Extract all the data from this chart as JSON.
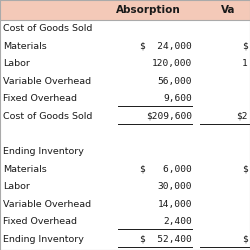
{
  "header_bg": "#f4c9b8",
  "table_bg": "#ffffff",
  "border_color": "#aaaaaa",
  "text_color": "#1a1a1a",
  "rows": [
    {
      "label": "Cost of Goods Sold",
      "absorption": "",
      "variable": "",
      "section": true,
      "ul": false
    },
    {
      "label": "Materials",
      "absorption": "$  24,000",
      "variable": "$",
      "section": false,
      "ul": false
    },
    {
      "label": "Labor",
      "absorption": "120,000",
      "variable": "1",
      "section": false,
      "ul": false
    },
    {
      "label": "Variable Overhead",
      "absorption": "56,000",
      "variable": "",
      "section": false,
      "ul": false
    },
    {
      "label": "Fixed Overhead",
      "absorption": "9,600",
      "variable": "",
      "section": false,
      "ul": true
    },
    {
      "label": "Cost of Goods Sold",
      "absorption": "$209,600",
      "variable": "$2",
      "section": false,
      "ul": true
    },
    {
      "label": "",
      "absorption": "",
      "variable": "",
      "section": false,
      "ul": false
    },
    {
      "label": "Ending Inventory",
      "absorption": "",
      "variable": "",
      "section": true,
      "ul": false
    },
    {
      "label": "Materials",
      "absorption": "$   6,000",
      "variable": "$",
      "section": false,
      "ul": false
    },
    {
      "label": "Labor",
      "absorption": "30,000",
      "variable": "",
      "section": false,
      "ul": false
    },
    {
      "label": "Variable Overhead",
      "absorption": "14,000",
      "variable": "",
      "section": false,
      "ul": false
    },
    {
      "label": "Fixed Overhead",
      "absorption": "2,400",
      "variable": "",
      "section": false,
      "ul": true
    },
    {
      "label": "Ending Inventory",
      "absorption": "$  52,400",
      "variable": "$",
      "section": false,
      "ul": true
    }
  ],
  "font_size": 6.8,
  "header_font_size": 7.5,
  "figsize": [
    2.5,
    2.5
  ],
  "dpi": 100
}
